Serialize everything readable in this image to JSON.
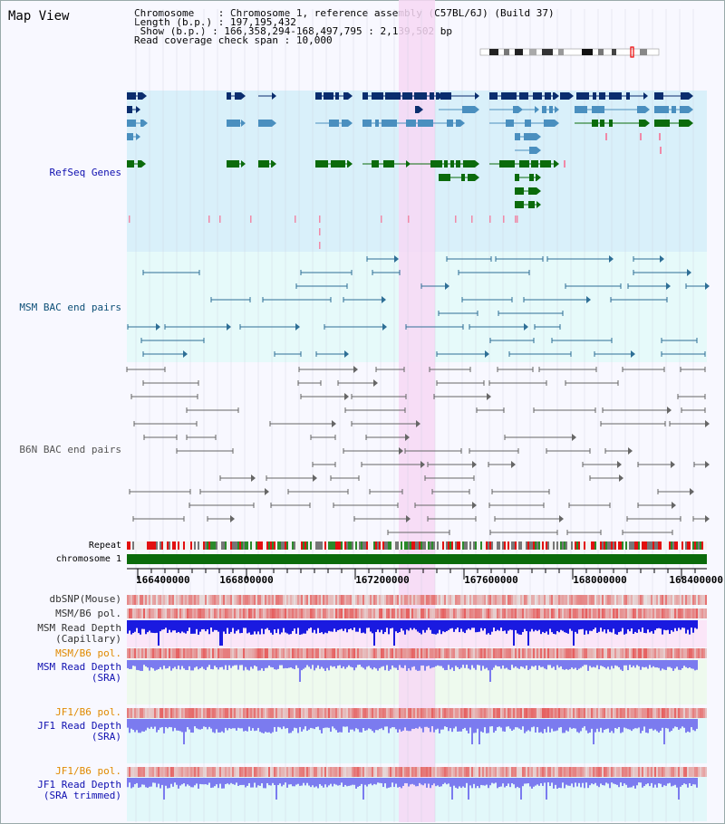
{
  "title": "Map View",
  "info": {
    "chromosome_label": "Chromosome",
    "chromosome_value": "Chromosome 1, reference assembly (C57BL/6J) (Build 37)",
    "length_label": "Length (b.p.)",
    "length_value": "197,195,432",
    "show_label": "Show (b.p.)",
    "show_value": "166,358,294-168,497,795 : 2,139,502 bp",
    "coverage_label": "Read coverage check span",
    "coverage_value": "10,000"
  },
  "tracks": {
    "refseq": "RefSeq Genes",
    "msm_bac": "MSM BAC end pairs",
    "b6n_bac": "B6N BAC end pairs",
    "repeat": "Repeat",
    "chromosome": "chromosome 1",
    "dbsnp": "dbSNP(Mouse)",
    "msm_pol1": "MSM/B6 pol.",
    "msm_depth_cap_1": "MSM Read Depth",
    "msm_depth_cap_2": "(Capillary)",
    "msm_pol2": "MSM/B6 pol.",
    "msm_depth_sra_1": "MSM Read Depth",
    "msm_depth_sra_2": "(SRA)",
    "jf1_pol1": "JF1/B6 pol.",
    "jf1_depth_1": "JF1 Read Depth",
    "jf1_depth_2": "(SRA)",
    "jf1_pol2": "JF1/B6 pol.",
    "jf1_trim_1": "JF1 Read Depth",
    "jf1_trim_2": "(SRA trimmed)"
  },
  "axis": {
    "ticks": [
      "166400000",
      "166800000",
      "167200000",
      "167600000",
      "168000000",
      "168400000"
    ]
  },
  "colors": {
    "refseq_bg": "#d9f0fa",
    "msm_bg": "#e6fafa",
    "highlight": "#f7d8f5",
    "gene_dark": "#0a2d6e",
    "gene_mid": "#4a8fbf",
    "gene_green": "#0b6b0b",
    "bac_line": "#2e6f96",
    "b6n_line": "#666666",
    "depth_blue": "#1a1ae0",
    "depth_light": "#7b7bef",
    "pol_red": "#e23a3a"
  }
}
